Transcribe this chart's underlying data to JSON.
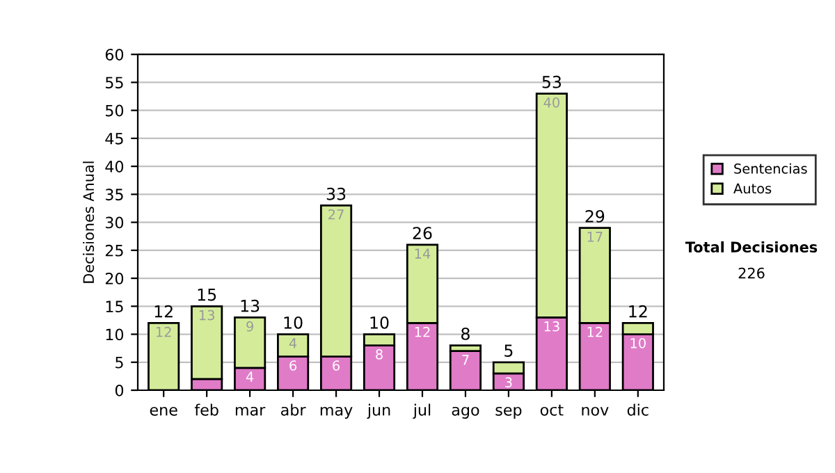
{
  "chart_data": {
    "type": "bar",
    "stacked": true,
    "ylabel": "Decisiones Anual",
    "categories": [
      "ene",
      "feb",
      "mar",
      "abr",
      "may",
      "jun",
      "jul",
      "ago",
      "sep",
      "oct",
      "nov",
      "dic"
    ],
    "series": [
      {
        "name": "Sentencias",
        "color": "#e07bc8",
        "values": [
          0,
          2,
          4,
          6,
          6,
          8,
          12,
          7,
          3,
          13,
          12,
          10
        ],
        "value_labels": [
          null,
          null,
          "4",
          "6",
          "6",
          "8",
          "12",
          "7",
          "3",
          "13",
          "12",
          "10"
        ]
      },
      {
        "name": "Autos",
        "color": "#d4ec9a",
        "values": [
          12,
          13,
          9,
          4,
          27,
          2,
          14,
          1,
          2,
          40,
          17,
          2
        ],
        "value_labels": [
          "12",
          "13",
          "9",
          "4",
          "27",
          null,
          "14",
          null,
          null,
          "40",
          "17",
          null
        ]
      }
    ],
    "totals": [
      "12",
      "15",
      "13",
      "10",
      "33",
      "10",
      "26",
      "8",
      "5",
      "53",
      "29",
      "12"
    ],
    "ylim": [
      0,
      60
    ],
    "yticks": [
      0,
      5,
      10,
      15,
      20,
      25,
      30,
      35,
      40,
      45,
      50,
      55,
      60
    ],
    "grid": "y",
    "legend": "right",
    "annotations": [
      "Total Decisiones",
      "226"
    ]
  }
}
